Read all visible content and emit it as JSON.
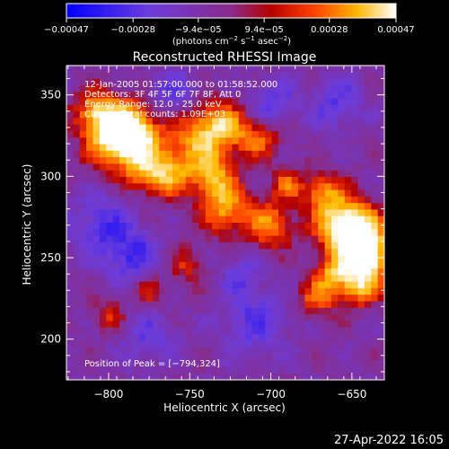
{
  "chart_data": {
    "type": "heatmap",
    "title": "Reconstructed RHESSI Image",
    "xlabel": "Heliocentric X (arcsec)",
    "ylabel": "Heliocentric Y (arcsec)",
    "xlim": [
      -826,
      -630
    ],
    "ylim": [
      175,
      368
    ],
    "x_ticks": [
      -800,
      -750,
      -700,
      -650
    ],
    "y_ticks": [
      200,
      250,
      300,
      350
    ],
    "x_tick_labels": [
      "−800",
      "−750",
      "−700",
      "−650"
    ],
    "y_tick_labels": [
      "200",
      "250",
      "300",
      "350"
    ],
    "colorbar": {
      "range": [
        -0.00047,
        0.00047
      ],
      "tick_values": [
        -0.00047,
        -0.00028,
        -9.4e-05,
        9.4e-05,
        0.00028,
        0.00047
      ],
      "tick_labels": [
        "−0.00047",
        "−0.00028",
        "−9.4e−05",
        "9.4e−05",
        "0.00028",
        "0.00047"
      ],
      "label_prefix": "(photons cm",
      "label_sup1": "−2",
      "label_mid1": " s",
      "label_sup2": "−1",
      "label_mid2": " asec",
      "label_sup3": "−2",
      "label_suffix": ")"
    },
    "annotations": [
      "12-Jan-2005 01:57:00.000 to 01:58:52.000",
      "Detectors: 3F 4F 5F 6F 7F 8F, Att 0",
      "Energy Range: 12.0 - 25.0 keV",
      "Clean    Total counts: 1.09E+03"
    ],
    "peak_label": "Position of Peak = [−794,324]",
    "peak": [
      -794,
      324
    ],
    "bright_regions": [
      {
        "x": -794,
        "y": 324,
        "r": 14,
        "level": 0.45
      },
      {
        "x": -787,
        "y": 327,
        "r": 11,
        "level": 0.42
      },
      {
        "x": -808,
        "y": 340,
        "r": 9,
        "level": 0.3
      },
      {
        "x": -775,
        "y": 303,
        "r": 10,
        "level": 0.3
      },
      {
        "x": -760,
        "y": 300,
        "r": 10,
        "level": 0.22
      },
      {
        "x": -745,
        "y": 322,
        "r": 14,
        "level": 0.34
      },
      {
        "x": -730,
        "y": 332,
        "r": 10,
        "level": 0.3
      },
      {
        "x": -735,
        "y": 300,
        "r": 9,
        "level": 0.28
      },
      {
        "x": -728,
        "y": 280,
        "r": 11,
        "level": 0.35
      },
      {
        "x": -708,
        "y": 323,
        "r": 9,
        "level": 0.28
      },
      {
        "x": -700,
        "y": 270,
        "r": 10,
        "level": 0.32
      },
      {
        "x": -690,
        "y": 295,
        "r": 7,
        "level": 0.24
      },
      {
        "x": -668,
        "y": 290,
        "r": 9,
        "level": 0.3
      },
      {
        "x": -655,
        "y": 270,
        "r": 12,
        "level": 0.42
      },
      {
        "x": -645,
        "y": 262,
        "r": 12,
        "level": 0.4
      },
      {
        "x": -640,
        "y": 248,
        "r": 10,
        "level": 0.38
      },
      {
        "x": -662,
        "y": 240,
        "r": 8,
        "level": 0.3
      },
      {
        "x": -672,
        "y": 225,
        "r": 8,
        "level": 0.26
      },
      {
        "x": -646,
        "y": 232,
        "r": 9,
        "level": 0.32
      },
      {
        "x": -775,
        "y": 230,
        "r": 7,
        "level": 0.2
      },
      {
        "x": -800,
        "y": 215,
        "r": 7,
        "level": 0.18
      },
      {
        "x": -752,
        "y": 245,
        "r": 8,
        "level": 0.18
      }
    ],
    "dark_regions": [
      {
        "x": -805,
        "y": 270,
        "r": 14,
        "level": -0.2
      },
      {
        "x": -785,
        "y": 250,
        "r": 12,
        "level": -0.22
      },
      {
        "x": -760,
        "y": 350,
        "r": 12,
        "level": -0.18
      },
      {
        "x": -700,
        "y": 345,
        "r": 10,
        "level": -0.2
      },
      {
        "x": -710,
        "y": 210,
        "r": 14,
        "level": -0.2
      },
      {
        "x": -775,
        "y": 200,
        "r": 12,
        "level": -0.16
      },
      {
        "x": -660,
        "y": 345,
        "r": 12,
        "level": -0.18
      },
      {
        "x": -718,
        "y": 240,
        "r": 9,
        "level": -0.16
      }
    ]
  },
  "timestamp": "27-Apr-2022 16:05"
}
